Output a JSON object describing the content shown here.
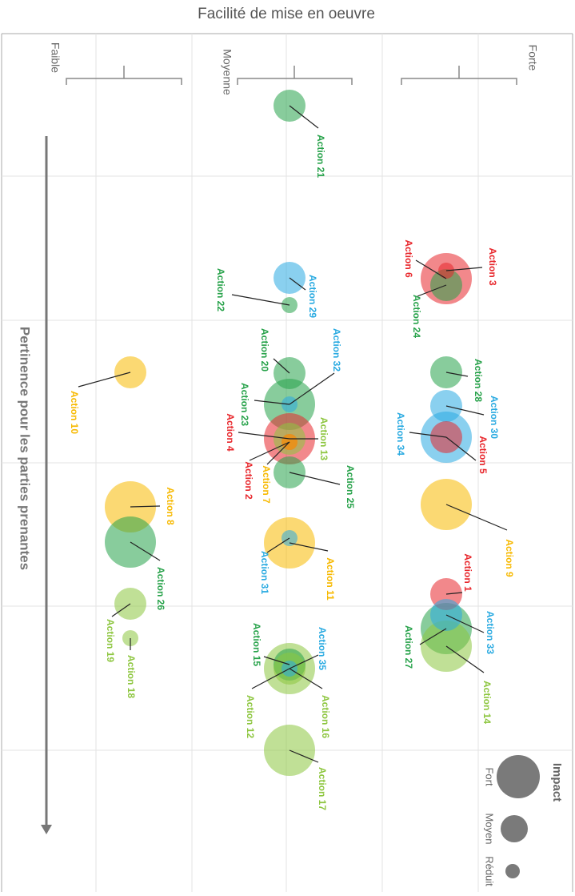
{
  "title": "Facilité de mise en oeuvre",
  "axis_label": "Pertinence pour les parties prenantes",
  "columns": [
    "Forte",
    "Moyenne",
    "Faible"
  ],
  "legend": {
    "title": "Impact",
    "items": [
      "Fort",
      "Moyen",
      "Réduit"
    ],
    "color": "#7a7a7a"
  },
  "actions": [
    {
      "label": "Action 21",
      "color": "#27a24a"
    },
    {
      "label": "Action 3",
      "color": "#e8262b"
    },
    {
      "label": "Action 6",
      "color": "#e8262b"
    },
    {
      "label": "Action 24",
      "color": "#27a24a"
    },
    {
      "label": "Action 29",
      "color": "#29aae1"
    },
    {
      "label": "Action 22",
      "color": "#27a24a"
    },
    {
      "label": "Action 10",
      "color": "#f7b900"
    },
    {
      "label": "Action 20",
      "color": "#27a24a"
    },
    {
      "label": "Action 32",
      "color": "#29aae1"
    },
    {
      "label": "Action 23",
      "color": "#27a24a"
    },
    {
      "label": "Action 4",
      "color": "#e8262b"
    },
    {
      "label": "Action 13",
      "color": "#8dc63f"
    },
    {
      "label": "Action 2",
      "color": "#e8262b"
    },
    {
      "label": "Action 7",
      "color": "#f7b900"
    },
    {
      "label": "Action 25",
      "color": "#27a24a"
    },
    {
      "label": "Action 28",
      "color": "#27a24a"
    },
    {
      "label": "Action 30",
      "color": "#29aae1"
    },
    {
      "label": "Action 34",
      "color": "#29aae1"
    },
    {
      "label": "Action 5",
      "color": "#e8262b"
    },
    {
      "label": "Action 9",
      "color": "#f7b900"
    },
    {
      "label": "Action 8",
      "color": "#f7b900"
    },
    {
      "label": "Action 26",
      "color": "#27a24a"
    },
    {
      "label": "Action 31",
      "color": "#29aae1"
    },
    {
      "label": "Action 11",
      "color": "#f7b900"
    },
    {
      "label": "Action 19",
      "color": "#8dc63f"
    },
    {
      "label": "Action 18",
      "color": "#8dc63f"
    },
    {
      "label": "Action 1",
      "color": "#e8262b"
    },
    {
      "label": "Action 33",
      "color": "#29aae1"
    },
    {
      "label": "Action 27",
      "color": "#27a24a"
    },
    {
      "label": "Action 14",
      "color": "#8dc63f"
    },
    {
      "label": "Action 35",
      "color": "#29aae1"
    },
    {
      "label": "Action 15",
      "color": "#27a24a"
    },
    {
      "label": "Action 16",
      "color": "#8dc63f"
    },
    {
      "label": "Action 12",
      "color": "#8dc63f"
    },
    {
      "label": "Action 17",
      "color": "#8dc63f"
    }
  ]
}
